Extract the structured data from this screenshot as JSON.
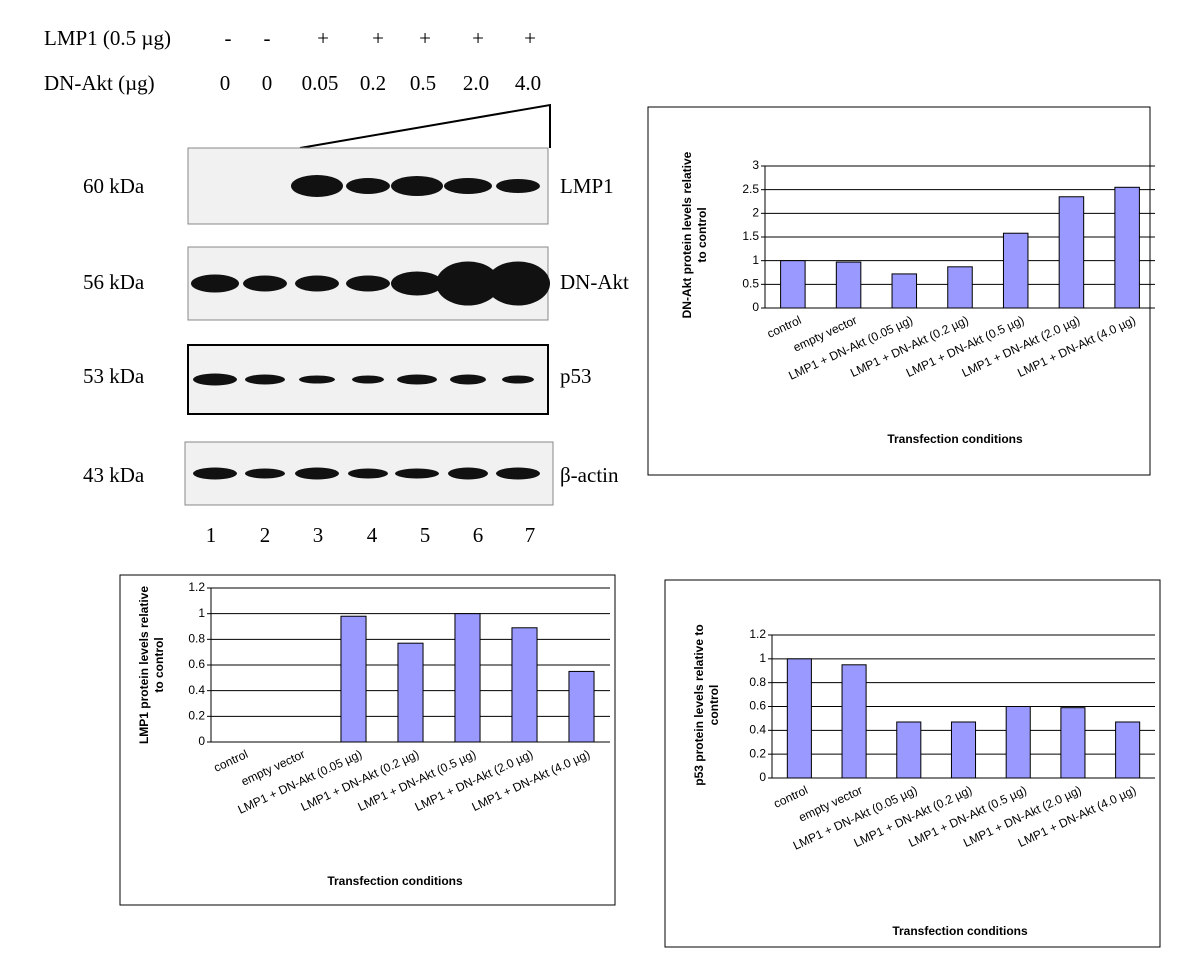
{
  "blot": {
    "rows": [
      {
        "label": "LMP1 (0.5 µg)",
        "values": [
          "-",
          "-",
          "+",
          "+",
          "+",
          "+",
          "+"
        ]
      },
      {
        "label": "DN-Akt (µg)",
        "values": [
          "0",
          "0",
          "0.05",
          "0.2",
          "0.5",
          "2.0",
          "4.0"
        ]
      }
    ],
    "bands": [
      {
        "size": "60 kDa",
        "name": "LMP1"
      },
      {
        "size": "56 kDa",
        "name": "DN-Akt"
      },
      {
        "size": "53 kDa",
        "name": "p53"
      },
      {
        "size": "43 kDa",
        "name": "β-actin"
      }
    ],
    "lanes": [
      "1",
      "2",
      "3",
      "4",
      "5",
      "6",
      "7"
    ]
  },
  "chart_data": [
    {
      "type": "bar",
      "y_label": [
        "DN-Akt protein levels relative",
        "to control"
      ],
      "x_label": "Transfection conditions",
      "categories": [
        "control",
        "empty vector",
        "LMP1 + DN-Akt (0.05 µg)",
        "LMP1 + DN-Akt (0.2 µg)",
        "LMP1 + DN-Akt (0.5 µg)",
        "LMP1 + DN-Akt (2.0 µg)",
        "LMP1 + DN-Akt (4.0 µg)"
      ],
      "values": [
        1,
        0.97,
        0.72,
        0.87,
        1.58,
        2.35,
        2.55
      ],
      "color": "#9999ff",
      "ylim": [
        0,
        3
      ],
      "yticks": [
        0,
        0.5,
        1,
        1.5,
        2,
        2.5,
        3
      ],
      "grid": true
    },
    {
      "type": "bar",
      "y_label": [
        "LMP1 protein levels relative",
        "to control"
      ],
      "x_label": "Transfection conditions",
      "categories": [
        "control",
        "empty vector",
        "LMP1 + DN-Akt (0.05 µg)",
        "LMP1 + DN-Akt (0.2 µg)",
        "LMP1 + DN-Akt (0.5 µg)",
        "LMP1 + DN-Akt (2.0 µg)",
        "LMP1 + DN-Akt (4.0 µg)"
      ],
      "values": [
        0,
        0,
        0.98,
        0.77,
        1.0,
        0.89,
        0.55
      ],
      "color": "#9999ff",
      "ylim": [
        0,
        1.2
      ],
      "yticks": [
        0,
        0.2,
        0.4,
        0.6,
        0.8,
        1,
        1.2
      ],
      "grid": true
    },
    {
      "type": "bar",
      "y_label": [
        "p53 protein levels relative to",
        "control"
      ],
      "x_label": "Transfection conditions",
      "categories": [
        "control",
        "empty vector",
        "LMP1 + DN-Akt (0.05 µg)",
        "LMP1 + DN-Akt (0.2 µg)",
        "LMP1 + DN-Akt (0.5 µg)",
        "LMP1 + DN-Akt (2.0 µg)",
        "LMP1 + DN-Akt (4.0 µg)"
      ],
      "values": [
        1,
        0.95,
        0.47,
        0.47,
        0.6,
        0.59,
        0.47
      ],
      "color": "#9999ff",
      "ylim": [
        0,
        1.2
      ],
      "yticks": [
        0,
        0.2,
        0.4,
        0.6,
        0.8,
        1,
        1.2
      ],
      "grid": true
    }
  ]
}
